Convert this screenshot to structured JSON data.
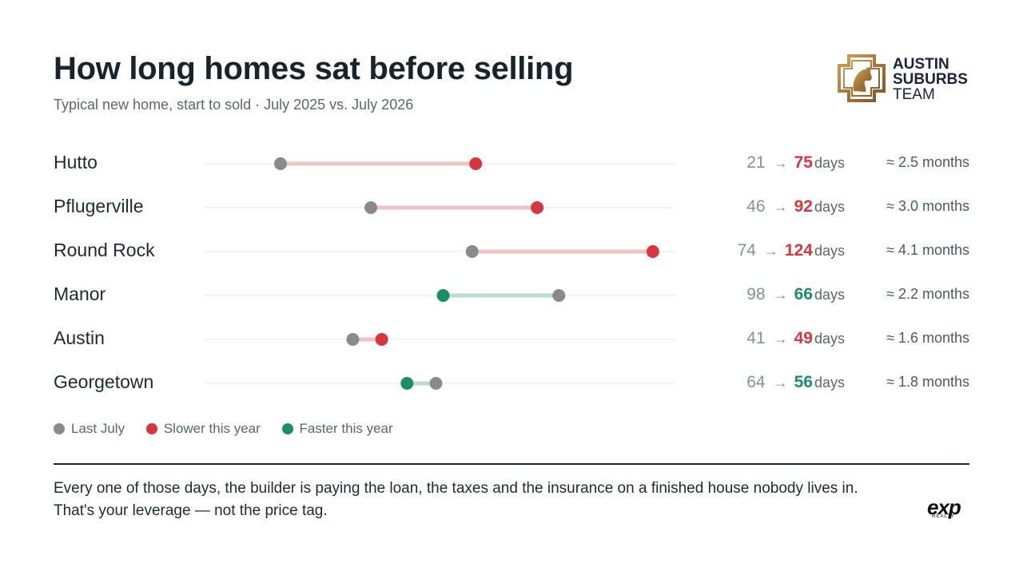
{
  "title": "How long homes sat before selling",
  "subtitle": "Typical new home, start to sold · July 2025 vs. July 2026",
  "logo": {
    "line1": "AUSTIN",
    "line2": "SUBURBS",
    "line3": "TEAM"
  },
  "colors": {
    "last_july": "#8a8a8a",
    "slower": "#d8363f",
    "faster": "#1a8f62",
    "slower_bar": "#f2c2c6",
    "faster_bar": "#b9ddd2"
  },
  "chart_data": {
    "type": "dumbbell",
    "title": "How long homes sat before selling",
    "subtitle": "Typical new home, start to sold · July 2025 vs. July 2026",
    "xlim": [
      0,
      130
    ],
    "grid": false,
    "legend": [
      "Last July",
      "Slower this year",
      "Faster this year"
    ],
    "rows": [
      {
        "city": "Hutto",
        "last": 21,
        "now": 75,
        "unit": "days",
        "months": "≈ 2.5 months",
        "direction": "slower"
      },
      {
        "city": "Pflugerville",
        "last": 46,
        "now": 92,
        "unit": "days",
        "months": "≈ 3.0 months",
        "direction": "slower"
      },
      {
        "city": "Round Rock",
        "last": 74,
        "now": 124,
        "unit": "days",
        "months": "≈ 4.1 months",
        "direction": "slower"
      },
      {
        "city": "Manor",
        "last": 98,
        "now": 66,
        "unit": "days",
        "months": "≈ 2.2 months",
        "direction": "faster"
      },
      {
        "city": "Austin",
        "last": 41,
        "now": 49,
        "unit": "days",
        "months": "≈ 1.6 months",
        "direction": "slower"
      },
      {
        "city": "Georgetown",
        "last": 64,
        "now": 56,
        "unit": "days",
        "months": "≈ 1.8 months",
        "direction": "faster"
      }
    ]
  },
  "arrow_glyph": "→",
  "legend": {
    "last_july": "Last July",
    "slower": "Slower this year",
    "faster": "Faster this year"
  },
  "footer": "Every one of those days, the builder is paying the loan, the taxes and the insurance on a finished house nobody lives in. That's your leverage — not the price tag.",
  "brand": {
    "exp_word": "exp",
    "exp_sub": "REALTY"
  }
}
